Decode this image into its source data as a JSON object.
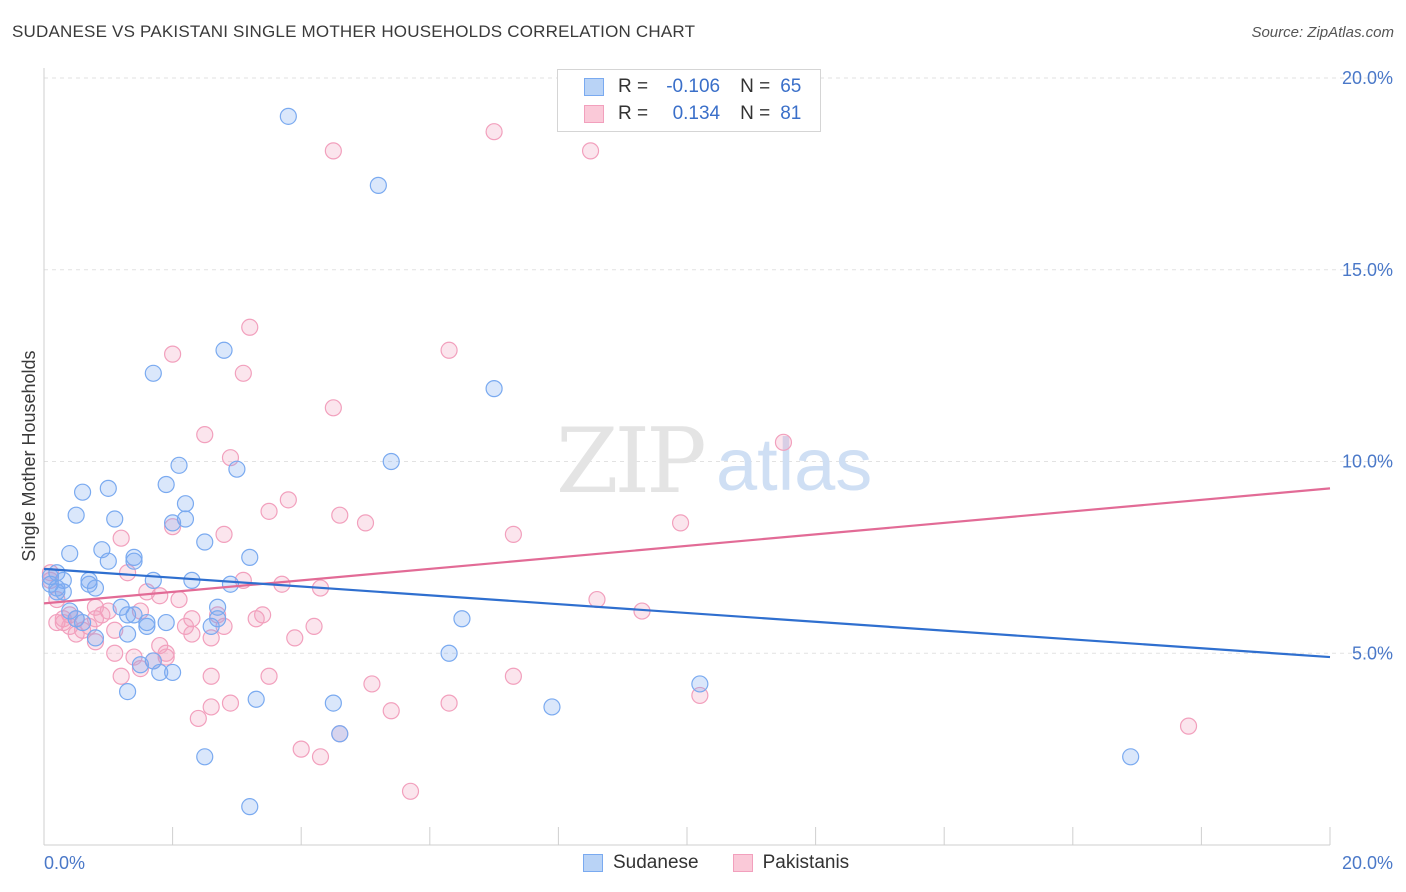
{
  "title": "SUDANESE VS PAKISTANI SINGLE MOTHER HOUSEHOLDS CORRELATION CHART",
  "source": "Source: ZipAtlas.com",
  "watermark": {
    "zip": "ZIP",
    "atlas": "atlas"
  },
  "legend": {
    "rows": [
      {
        "r_label": "R =",
        "r_value": "-0.106",
        "n_label": "N =",
        "n_value": "65"
      },
      {
        "r_label": "R =",
        "r_value": "0.134",
        "n_label": "N =",
        "n_value": "81"
      }
    ],
    "bottom": [
      "Sudanese",
      "Pakistanis"
    ]
  },
  "chart_data": {
    "type": "scatter",
    "title": "SUDANESE VS PAKISTANI SINGLE MOTHER HOUSEHOLDS CORRELATION CHART",
    "xlabel": "",
    "ylabel": "Single Mother Households",
    "xlim": [
      0,
      20
    ],
    "ylim": [
      0,
      20
    ],
    "x_tick_labels": [
      "0.0%",
      "20.0%"
    ],
    "y_tick_values": [
      5,
      10,
      15,
      20
    ],
    "y_tick_labels": [
      "5.0%",
      "10.0%",
      "15.0%",
      "20.0%"
    ],
    "grid": true,
    "legend_position": "top-center",
    "colors": {
      "Sudanese": "#7aaaf0",
      "Pakistanis": "#f2a0bd",
      "sudanese_line": "#2f6fcf",
      "pakistanis_line": "#e26b96"
    },
    "series": [
      {
        "name": "Sudanese",
        "R": -0.106,
        "N": 65,
        "trend": {
          "x": [
            0,
            20
          ],
          "y": [
            7.2,
            4.9
          ]
        },
        "points": [
          [
            0.1,
            7.0
          ],
          [
            0.1,
            6.8
          ],
          [
            0.2,
            6.6
          ],
          [
            0.2,
            7.1
          ],
          [
            0.3,
            6.9
          ],
          [
            0.3,
            6.6
          ],
          [
            0.4,
            7.6
          ],
          [
            0.4,
            6.1
          ],
          [
            0.5,
            5.9
          ],
          [
            0.5,
            8.6
          ],
          [
            0.6,
            9.2
          ],
          [
            0.7,
            6.8
          ],
          [
            0.7,
            6.9
          ],
          [
            0.8,
            6.7
          ],
          [
            0.8,
            5.4
          ],
          [
            0.9,
            7.7
          ],
          [
            1.0,
            9.3
          ],
          [
            1.0,
            7.4
          ],
          [
            1.1,
            8.5
          ],
          [
            1.2,
            6.2
          ],
          [
            1.3,
            5.5
          ],
          [
            1.3,
            6.0
          ],
          [
            1.3,
            4.0
          ],
          [
            1.4,
            7.5
          ],
          [
            1.4,
            7.4
          ],
          [
            1.5,
            4.7
          ],
          [
            1.6,
            5.8
          ],
          [
            1.6,
            5.7
          ],
          [
            1.7,
            4.8
          ],
          [
            1.7,
            12.3
          ],
          [
            1.7,
            6.9
          ],
          [
            1.8,
            4.5
          ],
          [
            1.9,
            9.4
          ],
          [
            1.9,
            5.8
          ],
          [
            2.0,
            4.5
          ],
          [
            2.0,
            8.4
          ],
          [
            2.1,
            9.9
          ],
          [
            2.2,
            8.5
          ],
          [
            2.2,
            8.9
          ],
          [
            2.3,
            6.9
          ],
          [
            2.5,
            7.9
          ],
          [
            2.5,
            2.3
          ],
          [
            2.6,
            5.7
          ],
          [
            2.7,
            6.2
          ],
          [
            2.7,
            5.9
          ],
          [
            2.8,
            12.9
          ],
          [
            2.9,
            6.8
          ],
          [
            3.0,
            9.8
          ],
          [
            3.2,
            7.5
          ],
          [
            3.3,
            3.8
          ],
          [
            3.8,
            19.0
          ],
          [
            4.5,
            3.7
          ],
          [
            4.6,
            2.9
          ],
          [
            5.2,
            17.2
          ],
          [
            5.4,
            10.0
          ],
          [
            6.3,
            5.0
          ],
          [
            6.5,
            5.9
          ],
          [
            7.0,
            11.9
          ],
          [
            7.9,
            3.6
          ],
          [
            10.2,
            4.2
          ],
          [
            16.9,
            2.3
          ],
          [
            3.2,
            1.0
          ],
          [
            0.2,
            6.7
          ],
          [
            0.6,
            5.8
          ],
          [
            1.4,
            6.0
          ]
        ]
      },
      {
        "name": "Pakistanis",
        "R": 0.134,
        "N": 81,
        "trend": {
          "x": [
            0,
            20
          ],
          "y": [
            6.3,
            9.3
          ]
        },
        "points": [
          [
            0.1,
            7.1
          ],
          [
            0.1,
            6.9
          ],
          [
            0.2,
            6.4
          ],
          [
            0.2,
            5.8
          ],
          [
            0.3,
            5.9
          ],
          [
            0.3,
            5.8
          ],
          [
            0.4,
            6.0
          ],
          [
            0.4,
            5.7
          ],
          [
            0.5,
            5.9
          ],
          [
            0.5,
            5.5
          ],
          [
            0.6,
            5.6
          ],
          [
            0.7,
            5.7
          ],
          [
            0.8,
            5.3
          ],
          [
            0.8,
            5.9
          ],
          [
            0.8,
            6.2
          ],
          [
            0.9,
            6.0
          ],
          [
            1.0,
            6.1
          ],
          [
            1.1,
            5.0
          ],
          [
            1.1,
            5.6
          ],
          [
            1.2,
            4.4
          ],
          [
            1.2,
            8.0
          ],
          [
            1.3,
            7.1
          ],
          [
            1.4,
            4.9
          ],
          [
            1.5,
            6.1
          ],
          [
            1.5,
            4.6
          ],
          [
            1.6,
            6.6
          ],
          [
            1.7,
            4.8
          ],
          [
            1.8,
            6.5
          ],
          [
            1.8,
            5.2
          ],
          [
            1.9,
            4.9
          ],
          [
            1.9,
            5.0
          ],
          [
            2.0,
            12.8
          ],
          [
            2.0,
            8.3
          ],
          [
            2.1,
            6.4
          ],
          [
            2.2,
            5.7
          ],
          [
            2.3,
            5.5
          ],
          [
            2.3,
            5.9
          ],
          [
            2.4,
            3.3
          ],
          [
            2.5,
            10.7
          ],
          [
            2.6,
            4.4
          ],
          [
            2.6,
            3.6
          ],
          [
            2.6,
            5.4
          ],
          [
            2.7,
            6.0
          ],
          [
            2.8,
            5.7
          ],
          [
            2.8,
            8.1
          ],
          [
            2.9,
            3.7
          ],
          [
            2.9,
            10.1
          ],
          [
            3.1,
            12.3
          ],
          [
            3.1,
            6.9
          ],
          [
            3.2,
            13.5
          ],
          [
            3.3,
            5.9
          ],
          [
            3.4,
            6.0
          ],
          [
            3.5,
            4.4
          ],
          [
            3.5,
            8.7
          ],
          [
            3.7,
            6.8
          ],
          [
            3.8,
            9.0
          ],
          [
            3.9,
            5.4
          ],
          [
            4.0,
            2.5
          ],
          [
            4.2,
            5.7
          ],
          [
            4.3,
            6.7
          ],
          [
            4.3,
            2.3
          ],
          [
            4.5,
            18.1
          ],
          [
            4.6,
            8.6
          ],
          [
            4.6,
            2.9
          ],
          [
            5.0,
            8.4
          ],
          [
            5.1,
            4.2
          ],
          [
            5.4,
            3.5
          ],
          [
            5.7,
            1.4
          ],
          [
            6.3,
            3.7
          ],
          [
            6.3,
            12.9
          ],
          [
            7.0,
            18.6
          ],
          [
            7.3,
            8.1
          ],
          [
            7.3,
            4.4
          ],
          [
            8.5,
            18.1
          ],
          [
            8.6,
            6.4
          ],
          [
            9.3,
            6.1
          ],
          [
            9.9,
            8.4
          ],
          [
            10.2,
            3.9
          ],
          [
            11.5,
            10.5
          ],
          [
            17.8,
            3.1
          ],
          [
            4.5,
            11.4
          ]
        ]
      }
    ]
  }
}
